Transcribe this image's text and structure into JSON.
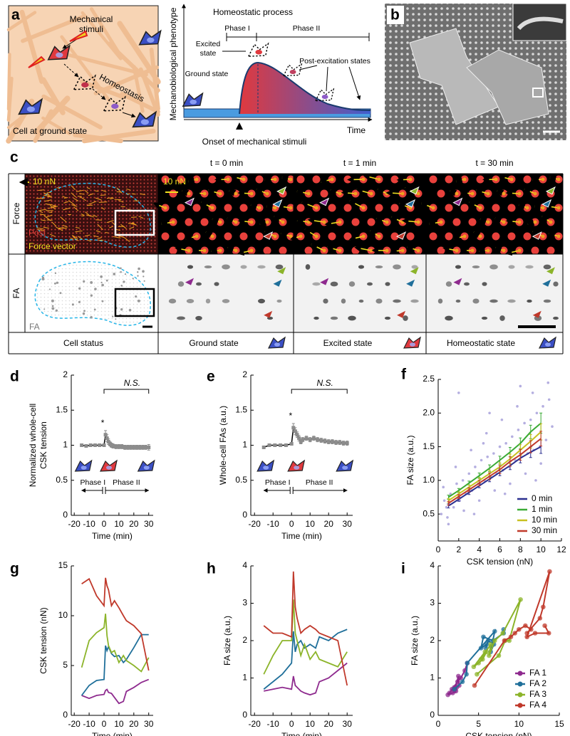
{
  "panel_a": {
    "label": "a",
    "mechanical_stimuli": [
      "Mechanical",
      "stimuli"
    ],
    "homeostasis": "Homeostasis",
    "cell_ground": "Cell at ground state",
    "title": "Homeostatic process",
    "phases": [
      "Phase I",
      "Phase II"
    ],
    "excited": [
      "Excited",
      "state"
    ],
    "ground": "Ground state",
    "post": "Post-excitation states",
    "ylabel": "Mechanobiological phenotype",
    "xlabel": "Time",
    "onset": "Onset of mechanical stimuli"
  },
  "panel_b": {
    "label": "b"
  },
  "panel_c": {
    "label": "c",
    "headers": [
      "t = 0 min",
      "t = 1 min",
      "t = 30 min"
    ],
    "rows": [
      "Force",
      "FA"
    ],
    "scale_force": [
      "10 nN",
      "10 nN"
    ],
    "legend": [
      "Post",
      "Force vector"
    ],
    "fa_label": "FA",
    "status_header": "Cell status",
    "status": [
      "Ground state",
      "Excited state",
      "Homeostatic state"
    ]
  },
  "chart_data": [
    {
      "type": "line",
      "label": "d",
      "ylabel": [
        "Normalized whole-cell",
        "CSK tension"
      ],
      "xlabel": "Time (min)",
      "x": [
        -15,
        -12,
        -9,
        -6,
        -3,
        0,
        1,
        2,
        3,
        4,
        5,
        6,
        8,
        10,
        12,
        14,
        16,
        18,
        20,
        22,
        24,
        26,
        28,
        30
      ],
      "values": [
        1.0,
        0.99,
        1.0,
        1.0,
        1.0,
        1.0,
        1.15,
        1.1,
        1.05,
        1.02,
        1.0,
        0.99,
        0.98,
        0.98,
        0.98,
        0.97,
        0.97,
        0.97,
        0.97,
        0.97,
        0.97,
        0.97,
        0.97,
        0.97
      ],
      "errors": [
        0.02,
        0.02,
        0.02,
        0.02,
        0.02,
        0.02,
        0.06,
        0.05,
        0.04,
        0.03,
        0.03,
        0.03,
        0.03,
        0.03,
        0.03,
        0.03,
        0.03,
        0.03,
        0.03,
        0.03,
        0.03,
        0.03,
        0.03,
        0.04
      ],
      "color": "#000000",
      "marker_color": "#8c8c8c",
      "xlim": [
        -22,
        33
      ],
      "ylim": [
        0,
        2
      ],
      "xticks": [
        -20,
        -10,
        0,
        10,
        20,
        30
      ],
      "yticks": [
        0,
        0.5,
        1,
        1.5,
        2
      ],
      "significance": "*",
      "ns_label": "N.S.",
      "phase_labels": [
        "Phase I",
        "Phase II"
      ]
    },
    {
      "type": "line",
      "label": "e",
      "ylabel": [
        "Whole-cell FAs (a.u.)"
      ],
      "xlabel": "Time (min)",
      "x": [
        -15,
        -12,
        -9,
        -6,
        -3,
        0,
        1,
        2,
        3,
        4,
        5,
        6,
        8,
        10,
        12,
        14,
        16,
        18,
        20,
        22,
        24,
        26,
        28,
        30
      ],
      "values": [
        0.97,
        1.0,
        1.0,
        1.0,
        1.0,
        1.02,
        1.25,
        1.2,
        1.15,
        1.1,
        1.05,
        1.08,
        1.1,
        1.08,
        1.1,
        1.08,
        1.07,
        1.06,
        1.05,
        1.05,
        1.04,
        1.04,
        1.03,
        1.03
      ],
      "errors": [
        0.02,
        0.02,
        0.02,
        0.02,
        0.02,
        0.02,
        0.06,
        0.05,
        0.04,
        0.04,
        0.03,
        0.03,
        0.03,
        0.03,
        0.03,
        0.03,
        0.03,
        0.03,
        0.03,
        0.03,
        0.03,
        0.03,
        0.03,
        0.03
      ],
      "color": "#000000",
      "marker_color": "#8c8c8c",
      "xlim": [
        -22,
        33
      ],
      "ylim": [
        0,
        2
      ],
      "xticks": [
        -20,
        -10,
        0,
        10,
        20,
        30
      ],
      "yticks": [
        0,
        0.5,
        1,
        1.5,
        2
      ],
      "significance": "*",
      "ns_label": "N.S.",
      "phase_labels": [
        "Phase I",
        "Phase II"
      ]
    },
    {
      "type": "scatter",
      "label": "f",
      "xlabel": "CSK tension (nN)",
      "ylabel": [
        "FA size (a.u.)"
      ],
      "points": {
        "color": "#b4aee0",
        "x": [
          0.3,
          0.6,
          0.9,
          1.2,
          1.5,
          1.8,
          2.1,
          2.4,
          2.7,
          3.0,
          3.3,
          3.6,
          3.9,
          4.2,
          4.5,
          4.8,
          5.1,
          5.4,
          5.7,
          6.0,
          6.3,
          6.6,
          6.9,
          7.2,
          7.5,
          7.8,
          8.1,
          8.4,
          8.7,
          9.0,
          9.3,
          9.6,
          9.9,
          10.2,
          10.5,
          10.8,
          11.1,
          0.5,
          1.0,
          1.7,
          2.5,
          3.2,
          4.0,
          4.7,
          5.5,
          6.2,
          7.0,
          7.7,
          8.5,
          9.2,
          10.0,
          10.7,
          2.0,
          3.5,
          5.0,
          6.5,
          8.0,
          9.5,
          0.8,
          4.4
        ],
        "y": [
          0.5,
          0.7,
          0.45,
          0.8,
          0.6,
          0.95,
          0.7,
          1.0,
          0.8,
          1.1,
          0.85,
          1.2,
          0.95,
          1.3,
          1.0,
          1.35,
          1.05,
          1.4,
          1.1,
          1.5,
          1.15,
          1.55,
          1.2,
          1.65,
          1.3,
          1.75,
          1.35,
          1.85,
          1.4,
          1.9,
          1.45,
          2.0,
          1.5,
          2.1,
          1.6,
          2.2,
          1.8,
          0.9,
          0.35,
          1.2,
          0.55,
          1.45,
          0.7,
          1.7,
          0.85,
          1.9,
          0.95,
          2.1,
          1.1,
          2.3,
          1.25,
          2.45,
          2.3,
          0.5,
          2.0,
          0.8,
          2.4,
          1.0,
          0.6,
          1.55
        ]
      },
      "x": [
        1,
        2,
        3,
        4,
        5,
        6,
        7,
        8,
        9,
        10
      ],
      "series": [
        {
          "name": "0 min",
          "color": "#2b2f8f",
          "values": [
            0.62,
            0.72,
            0.82,
            0.92,
            1.02,
            1.12,
            1.22,
            1.33,
            1.42,
            1.5
          ],
          "errors": [
            0.03,
            0.03,
            0.03,
            0.03,
            0.04,
            0.05,
            0.06,
            0.07,
            0.08,
            0.1
          ]
        },
        {
          "name": "1 min",
          "color": "#3aaa35",
          "values": [
            0.75,
            0.85,
            0.96,
            1.07,
            1.18,
            1.3,
            1.42,
            1.55,
            1.72,
            1.85
          ],
          "errors": [
            0.03,
            0.03,
            0.03,
            0.04,
            0.05,
            0.06,
            0.07,
            0.08,
            0.1,
            0.15
          ]
        },
        {
          "name": "10 min",
          "color": "#c8c020",
          "values": [
            0.7,
            0.8,
            0.9,
            1.0,
            1.1,
            1.2,
            1.32,
            1.45,
            1.58,
            1.72
          ],
          "errors": [
            0.03,
            0.03,
            0.03,
            0.04,
            0.05,
            0.06,
            0.07,
            0.08,
            0.1,
            0.12
          ]
        },
        {
          "name": "30 min",
          "color": "#c0392b",
          "values": [
            0.66,
            0.76,
            0.86,
            0.96,
            1.06,
            1.16,
            1.28,
            1.38,
            1.5,
            1.62
          ],
          "errors": [
            0.03,
            0.03,
            0.03,
            0.04,
            0.05,
            0.06,
            0.07,
            0.08,
            0.09,
            0.11
          ]
        }
      ],
      "xlim": [
        0,
        12
      ],
      "ylim": [
        0.1,
        2.5
      ],
      "xticks": [
        0,
        2,
        4,
        6,
        8,
        10,
        12
      ],
      "yticks": [
        0.5,
        {
          "value": 1,
          "label": "1.0"
        },
        1.5,
        {
          "value": 2,
          "label": "2.0"
        },
        2.5
      ],
      "legend": "lower right"
    },
    {
      "type": "line",
      "label": "g",
      "xlabel": "Time (min)",
      "ylabel": [
        "CSK tension (nN)"
      ],
      "x": [
        -15,
        -10,
        -5,
        0,
        1,
        2,
        3,
        5,
        7,
        10,
        13,
        15,
        20,
        25,
        30
      ],
      "series": [
        {
          "color": "#8e2a8e",
          "values": [
            2.0,
            1.7,
            2.0,
            2.1,
            2.5,
            2.6,
            2.3,
            2.2,
            1.8,
            1.2,
            1.4,
            2.4,
            2.8,
            3.3,
            3.6
          ]
        },
        {
          "color": "#1f6f9a",
          "values": [
            2.0,
            3.0,
            3.5,
            3.6,
            7.0,
            6.5,
            6.9,
            6.2,
            5.9,
            6.0,
            5.3,
            5.6,
            6.8,
            8.1,
            8.1
          ]
        },
        {
          "color": "#8cb42a",
          "values": [
            4.8,
            7.5,
            8.3,
            8.8,
            10.2,
            8.0,
            7.0,
            6.3,
            6.5,
            5.3,
            6.0,
            5.5,
            5.0,
            4.4,
            5.8
          ]
        },
        {
          "color": "#c0392b",
          "values": [
            13.2,
            13.7,
            12.0,
            11.0,
            13.8,
            13.0,
            12.6,
            11.0,
            11.5,
            10.8,
            10.0,
            9.5,
            9.0,
            8.2,
            4.5
          ]
        }
      ],
      "xlim": [
        -22,
        33
      ],
      "ylim": [
        0,
        15
      ],
      "xticks": [
        -20,
        -10,
        0,
        10,
        20,
        30
      ],
      "yticks": [
        0,
        5,
        10,
        15
      ]
    },
    {
      "type": "line",
      "label": "h",
      "xlabel": "Time (min)",
      "ylabel": [
        "FA size (a.u.)"
      ],
      "x": [
        -15,
        -10,
        -5,
        0,
        1,
        2,
        3,
        5,
        7,
        10,
        13,
        15,
        20,
        25,
        30
      ],
      "series": [
        {
          "color": "#8e2a8e",
          "values": [
            0.65,
            0.7,
            0.75,
            0.7,
            1.05,
            0.8,
            0.75,
            0.65,
            0.6,
            0.55,
            0.6,
            0.9,
            1.0,
            1.2,
            1.4
          ]
        },
        {
          "color": "#1f6f9a",
          "values": [
            0.7,
            0.9,
            1.1,
            1.4,
            2.25,
            1.7,
            1.9,
            2.0,
            1.8,
            1.9,
            1.8,
            2.1,
            2.0,
            2.2,
            2.3
          ]
        },
        {
          "color": "#8cb42a",
          "values": [
            1.1,
            1.6,
            2.0,
            2.0,
            3.1,
            2.2,
            2.0,
            1.6,
            1.9,
            1.5,
            1.7,
            1.5,
            1.4,
            1.3,
            1.7
          ]
        },
        {
          "color": "#c0392b",
          "values": [
            2.4,
            2.2,
            2.2,
            2.1,
            3.85,
            2.9,
            2.6,
            2.2,
            2.3,
            2.4,
            2.3,
            2.2,
            2.1,
            2.0,
            0.8
          ]
        }
      ],
      "xlim": [
        -22,
        33
      ],
      "ylim": [
        0,
        4
      ],
      "xticks": [
        -20,
        -10,
        0,
        10,
        20,
        30
      ],
      "yticks": [
        0,
        1,
        2,
        3,
        4
      ]
    },
    {
      "type": "scatter",
      "label": "i",
      "xlabel": "CSK tension (nN)",
      "ylabel": [
        "FA size (a.u.)"
      ],
      "series": [
        {
          "name": "FA 1",
          "color": "#8e2a8e",
          "marker": "circle",
          "x": [
            2.0,
            1.7,
            2.0,
            2.1,
            2.5,
            2.6,
            2.3,
            2.2,
            1.8,
            1.2,
            1.4,
            2.4,
            2.8,
            3.3,
            3.6
          ],
          "values": [
            0.65,
            0.7,
            0.75,
            0.7,
            1.05,
            0.8,
            0.75,
            0.65,
            0.6,
            0.55,
            0.6,
            0.9,
            1.0,
            1.2,
            1.4
          ]
        },
        {
          "name": "FA 2",
          "color": "#1f6f9a",
          "marker": "circle",
          "x": [
            2.0,
            3.0,
            3.5,
            3.6,
            7.0,
            6.5,
            6.9,
            6.2,
            5.9,
            6.0,
            5.3,
            5.6,
            6.8,
            8.1,
            8.1
          ],
          "values": [
            0.7,
            0.9,
            1.1,
            1.4,
            2.25,
            1.7,
            1.9,
            2.0,
            1.8,
            1.9,
            1.8,
            2.1,
            2.0,
            2.2,
            2.3
          ]
        },
        {
          "name": "FA 3",
          "color": "#8cb42a",
          "marker": "circle",
          "x": [
            4.8,
            7.5,
            8.3,
            8.8,
            10.2,
            8.0,
            7.0,
            6.3,
            6.5,
            5.3,
            6.0,
            5.5,
            5.0,
            4.4,
            5.8
          ],
          "values": [
            1.1,
            1.6,
            2.0,
            2.0,
            3.1,
            2.2,
            2.0,
            1.6,
            1.9,
            1.5,
            1.7,
            1.5,
            1.4,
            1.3,
            1.7
          ]
        },
        {
          "name": "FA 4",
          "color": "#c0392b",
          "marker": "circle",
          "x": [
            13.2,
            13.7,
            12.0,
            11.0,
            13.8,
            13.0,
            12.6,
            11.0,
            11.5,
            10.8,
            10.0,
            9.5,
            9.0,
            8.2,
            4.5
          ],
          "values": [
            2.4,
            2.2,
            2.2,
            2.1,
            3.85,
            2.9,
            2.6,
            2.2,
            2.3,
            2.4,
            2.3,
            2.2,
            2.1,
            2.0,
            0.8
          ]
        }
      ],
      "xlim": [
        0,
        15
      ],
      "ylim": [
        0,
        4
      ],
      "xticks": [
        0,
        5,
        10,
        15
      ],
      "yticks": [
        0,
        1,
        2,
        3,
        4
      ],
      "legend": "lower right"
    }
  ]
}
